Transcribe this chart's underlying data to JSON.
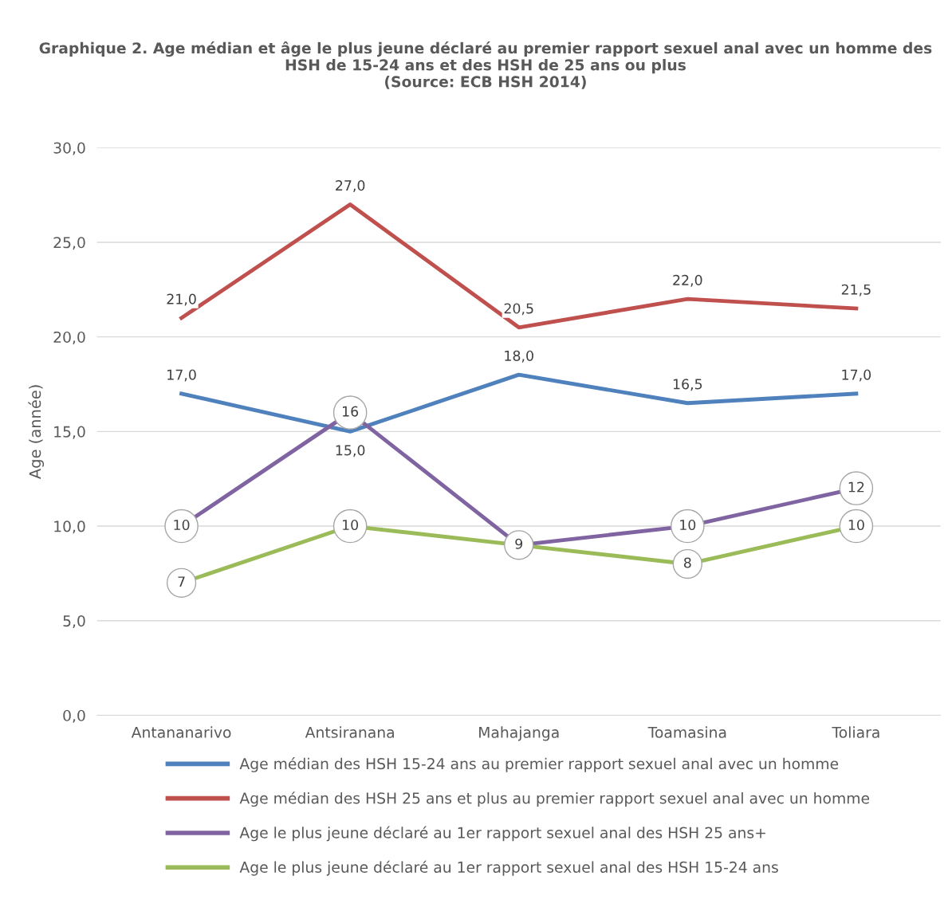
{
  "chart_data": {
    "type": "line",
    "title": "Graphique 2. Age médian et âge le plus jeune déclaré au premier rapport sexuel anal avec un homme des HSH de 15-24 ans et des HSH de 25 ans ou plus\n(Source: ECB HSH 2014)",
    "ylabel": "Age (année)",
    "categories": [
      "Antananarivo",
      "Antsiranana",
      "Mahajanga",
      "Toamasina",
      "Toliara"
    ],
    "series": [
      {
        "name": "Age médian des HSH 15-24 ans au premier rapport sexuel anal avec un homme",
        "color": "#4f81bd",
        "values": [
          17,
          15,
          18,
          16.5,
          17
        ],
        "value_labels": [
          "17,0",
          "15,0",
          "18,0",
          "16,5",
          "17,0"
        ]
      },
      {
        "name": "Age médian des HSH 25 ans et plus au premier rapport sexuel anal avec un homme",
        "color": "#c0504d",
        "values": [
          21,
          27,
          20.5,
          22,
          21.5
        ],
        "value_labels": [
          "21,0",
          "27,0",
          "20,5",
          "22,0",
          "21,5"
        ]
      },
      {
        "name": "Age le plus jeune déclaré au 1er rapport sexuel anal des HSH 25 ans+",
        "color": "#8064a2",
        "values": [
          10,
          16,
          9,
          10,
          12
        ],
        "value_labels": [
          "10",
          "16",
          null,
          "10",
          "12"
        ],
        "marker": "circle"
      },
      {
        "name": "Age le plus jeune déclaré au 1er rapport sexuel anal des HSH 15-24 ans",
        "color": "#9bbb59",
        "values": [
          7,
          10,
          9,
          8,
          10
        ],
        "value_labels": [
          "7",
          "10",
          "9",
          "8",
          "10"
        ],
        "marker": "circle"
      }
    ],
    "ylim": [
      0,
      30
    ],
    "yticks": [
      {
        "value": 0,
        "label": "0,0"
      },
      {
        "value": 5,
        "label": "5,0"
      },
      {
        "value": 10,
        "label": "10,0"
      },
      {
        "value": 15,
        "label": "15,0"
      },
      {
        "value": 20,
        "label": "20,0"
      },
      {
        "value": 25,
        "label": "25,0"
      },
      {
        "value": 30,
        "label": "30,0"
      }
    ],
    "grid": "y",
    "legend": "bottom",
    "line_style": "solid"
  }
}
